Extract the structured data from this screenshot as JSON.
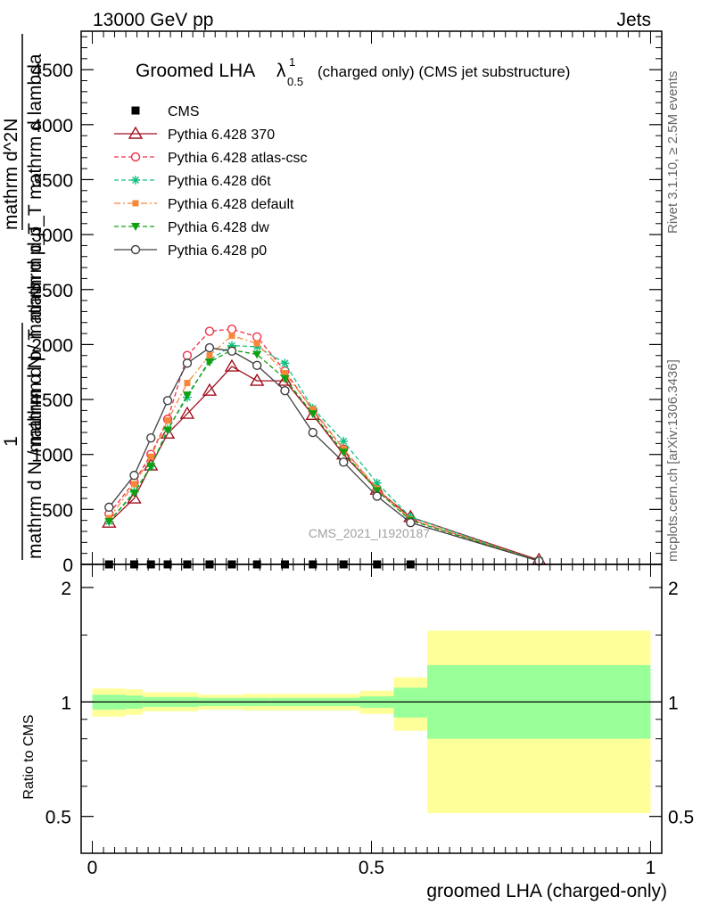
{
  "header": {
    "left": "13000 GeV pp",
    "right": "Jets"
  },
  "chart_title": {
    "main": "Groomed LHA",
    "lambda": "λ",
    "sup": "1",
    "sub": "0.5",
    "suffix": "(charged only) (CMS jet substructure)"
  },
  "side_labels": {
    "rivet": "Rivet 3.1.10, ≥ 2.5M events",
    "mcplots": "mcplots.cern.ch [arXiv:1306.3436]"
  },
  "watermark": "CMS_2021_I1920187",
  "y_label_main": {
    "frac_num": "1",
    "frac_den": "mathrm d N / mathrm d p_T",
    "deriv_num": "mathrm d^2N",
    "deriv_den": "mathrm d p_T mathrm d lambda",
    "alt_line": "mathrm d N / mathrm d p_T"
  },
  "y_label_ratio": "Ratio to CMS",
  "x_label": "groomed LHA (charged-only)",
  "colors": {
    "cms": "#000000",
    "p370": "#a01020",
    "atlas": "#f0304a",
    "d6t": "#10c080",
    "default": "#f88838",
    "dw": "#10a010",
    "p0": "#404040",
    "band_inner": "#99ff99",
    "band_outer": "#ffff99"
  },
  "chart_data": [
    {
      "type": "line",
      "panel": "main",
      "xlim": [
        -0.02,
        1.02
      ],
      "ylim": [
        0,
        4850
      ],
      "yticks": [
        0,
        500,
        1000,
        1500,
        2000,
        2500,
        3000,
        3500,
        4000,
        4500
      ],
      "ytick_labels": [
        "0",
        "500",
        "1000",
        "1500",
        "2000",
        "2500",
        "3000",
        "3500",
        "4000",
        "4500"
      ],
      "series": [
        {
          "name": "CMS",
          "x": [
            0.03,
            0.075,
            0.105,
            0.135,
            0.17,
            0.21,
            0.25,
            0.295,
            0.345,
            0.395,
            0.45,
            0.51,
            0.57
          ],
          "y": [
            0,
            0,
            0,
            0,
            0,
            0,
            0,
            0,
            0,
            0,
            0,
            0,
            0
          ]
        },
        {
          "name": "Pythia 6.428 370",
          "x": [
            0.03,
            0.075,
            0.105,
            0.135,
            0.17,
            0.21,
            0.25,
            0.295,
            0.345,
            0.395,
            0.45,
            0.51,
            0.57,
            0.8
          ],
          "y": [
            380,
            600,
            900,
            1190,
            1370,
            1580,
            1800,
            1670,
            1670,
            1360,
            1000,
            680,
            430,
            40
          ]
        },
        {
          "name": "Pythia 6.428 atlas-csc",
          "x": [
            0.03,
            0.075,
            0.105,
            0.135,
            0.17,
            0.21,
            0.25,
            0.295,
            0.345,
            0.395,
            0.45,
            0.51,
            0.57,
            0.8
          ],
          "y": [
            460,
            750,
            1000,
            1320,
            1900,
            2120,
            2140,
            2070,
            1760,
            1400,
            1050,
            680,
            410,
            30
          ]
        },
        {
          "name": "Pythia 6.428 d6t",
          "x": [
            0.03,
            0.075,
            0.105,
            0.135,
            0.17,
            0.21,
            0.25,
            0.295,
            0.345,
            0.395,
            0.45,
            0.51,
            0.57,
            0.8
          ],
          "y": [
            390,
            660,
            890,
            1230,
            1520,
            1860,
            1990,
            1980,
            1830,
            1420,
            1120,
            740,
            430,
            30
          ]
        },
        {
          "name": "Pythia 6.428 default",
          "x": [
            0.03,
            0.075,
            0.105,
            0.135,
            0.17,
            0.21,
            0.25,
            0.295,
            0.345,
            0.395,
            0.45,
            0.51,
            0.57,
            0.8
          ],
          "y": [
            420,
            730,
            980,
            1310,
            1650,
            1900,
            2080,
            2010,
            1740,
            1410,
            1050,
            690,
            410,
            30
          ]
        },
        {
          "name": "Pythia 6.428 dw",
          "x": [
            0.03,
            0.075,
            0.105,
            0.135,
            0.17,
            0.21,
            0.25,
            0.295,
            0.345,
            0.395,
            0.45,
            0.51,
            0.57,
            0.8
          ],
          "y": [
            390,
            650,
            890,
            1220,
            1540,
            1840,
            1950,
            1910,
            1690,
            1370,
            1020,
            670,
            400,
            30
          ]
        },
        {
          "name": "Pythia 6.428 p0",
          "x": [
            0.03,
            0.075,
            0.105,
            0.135,
            0.17,
            0.21,
            0.25,
            0.295,
            0.345,
            0.395,
            0.45,
            0.51,
            0.57,
            0.8
          ],
          "y": [
            520,
            810,
            1150,
            1490,
            1830,
            1970,
            1940,
            1810,
            1580,
            1200,
            930,
            620,
            380,
            30
          ]
        }
      ]
    },
    {
      "type": "area",
      "panel": "ratio",
      "xlim": [
        -0.02,
        1.02
      ],
      "ylim": [
        0.4,
        2.3
      ],
      "yticks": [
        0.5,
        1,
        2
      ],
      "ytick_labels": [
        "0.5",
        "1",
        "2"
      ],
      "xticks": [
        0,
        0.5,
        1
      ],
      "xtick_labels": [
        "0",
        "0.5",
        "1"
      ],
      "bins": [
        {
          "x0": 0.0,
          "x1": 0.06,
          "in_lo": 0.955,
          "in_hi": 1.045,
          "out_lo": 0.915,
          "out_hi": 1.085
        },
        {
          "x0": 0.06,
          "x1": 0.09,
          "in_lo": 0.96,
          "in_hi": 1.04,
          "out_lo": 0.925,
          "out_hi": 1.08
        },
        {
          "x0": 0.09,
          "x1": 0.12,
          "in_lo": 0.97,
          "in_hi": 1.03,
          "out_lo": 0.945,
          "out_hi": 1.06
        },
        {
          "x0": 0.12,
          "x1": 0.15,
          "in_lo": 0.97,
          "in_hi": 1.03,
          "out_lo": 0.945,
          "out_hi": 1.06
        },
        {
          "x0": 0.15,
          "x1": 0.19,
          "in_lo": 0.97,
          "in_hi": 1.03,
          "out_lo": 0.945,
          "out_hi": 1.06
        },
        {
          "x0": 0.19,
          "x1": 0.23,
          "in_lo": 0.975,
          "in_hi": 1.025,
          "out_lo": 0.955,
          "out_hi": 1.045
        },
        {
          "x0": 0.23,
          "x1": 0.27,
          "in_lo": 0.975,
          "in_hi": 1.025,
          "out_lo": 0.955,
          "out_hi": 1.045
        },
        {
          "x0": 0.27,
          "x1": 0.32,
          "in_lo": 0.975,
          "in_hi": 1.025,
          "out_lo": 0.95,
          "out_hi": 1.05
        },
        {
          "x0": 0.32,
          "x1": 0.37,
          "in_lo": 0.975,
          "in_hi": 1.025,
          "out_lo": 0.95,
          "out_hi": 1.05
        },
        {
          "x0": 0.37,
          "x1": 0.42,
          "in_lo": 0.975,
          "in_hi": 1.025,
          "out_lo": 0.95,
          "out_hi": 1.05
        },
        {
          "x0": 0.42,
          "x1": 0.48,
          "in_lo": 0.975,
          "in_hi": 1.025,
          "out_lo": 0.95,
          "out_hi": 1.05
        },
        {
          "x0": 0.48,
          "x1": 0.54,
          "in_lo": 0.965,
          "in_hi": 1.035,
          "out_lo": 0.93,
          "out_hi": 1.07
        },
        {
          "x0": 0.54,
          "x1": 0.6,
          "in_lo": 0.91,
          "in_hi": 1.09,
          "out_lo": 0.84,
          "out_hi": 1.16
        },
        {
          "x0": 0.6,
          "x1": 1.0,
          "in_lo": 0.8,
          "in_hi": 1.25,
          "out_lo": 0.51,
          "out_hi": 1.54
        }
      ]
    }
  ]
}
